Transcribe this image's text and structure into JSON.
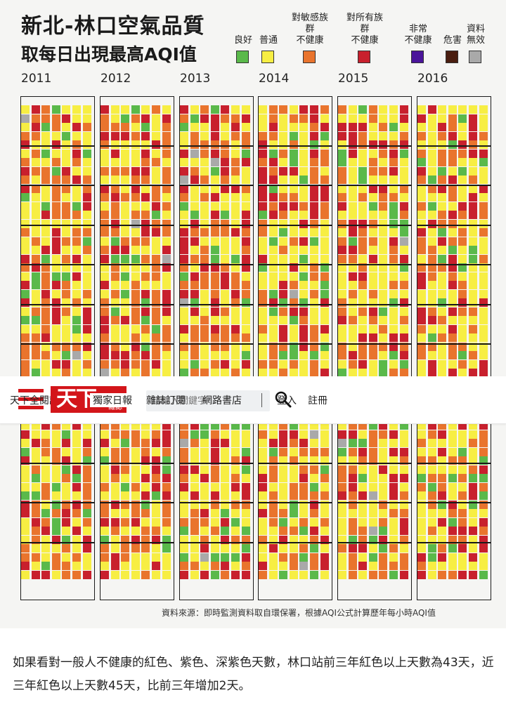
{
  "infographic": {
    "title_line1": "新北-林口空氣品質",
    "title_line2": "取每日出現最高AQI值",
    "legend": [
      {
        "label": "良好",
        "color": "#5ab94a"
      },
      {
        "label": "普通",
        "color": "#f7ee43"
      },
      {
        "label": "對敏感族群\n不健康",
        "color": "#e9742d"
      },
      {
        "label": "對所有族群\n不健康",
        "color": "#c8202d"
      },
      {
        "label": "非常\n不健康",
        "color": "#4a159a"
      },
      {
        "label": "危害",
        "color": "#4a1e10"
      },
      {
        "label": "資料\n無效",
        "color": "#a9a9a9"
      }
    ],
    "years": [
      "2011",
      "2012",
      "2013",
      "2014",
      "2015",
      "2016"
    ],
    "source_note": "資料來源：即時監測資料取自環保署，根據AQI公式計算歷年每小時AQI值"
  },
  "navbar": {
    "logo_text": "天下",
    "logo_subtext": "雜誌",
    "menu_links": [
      "天下全閱讀",
      "獨家日報",
      "雜誌訂閱",
      "網路書店"
    ],
    "search_placeholder": "請輸入關鍵字",
    "login_label": "登入",
    "register_label": "註冊"
  },
  "article": {
    "paragraph": "如果看對一般人不健康的紅色、紫色、深紫色天數，林口站前三年紅色以上天數為43天，近三年紅色以上天數45天，比前三年增加2天。"
  }
}
